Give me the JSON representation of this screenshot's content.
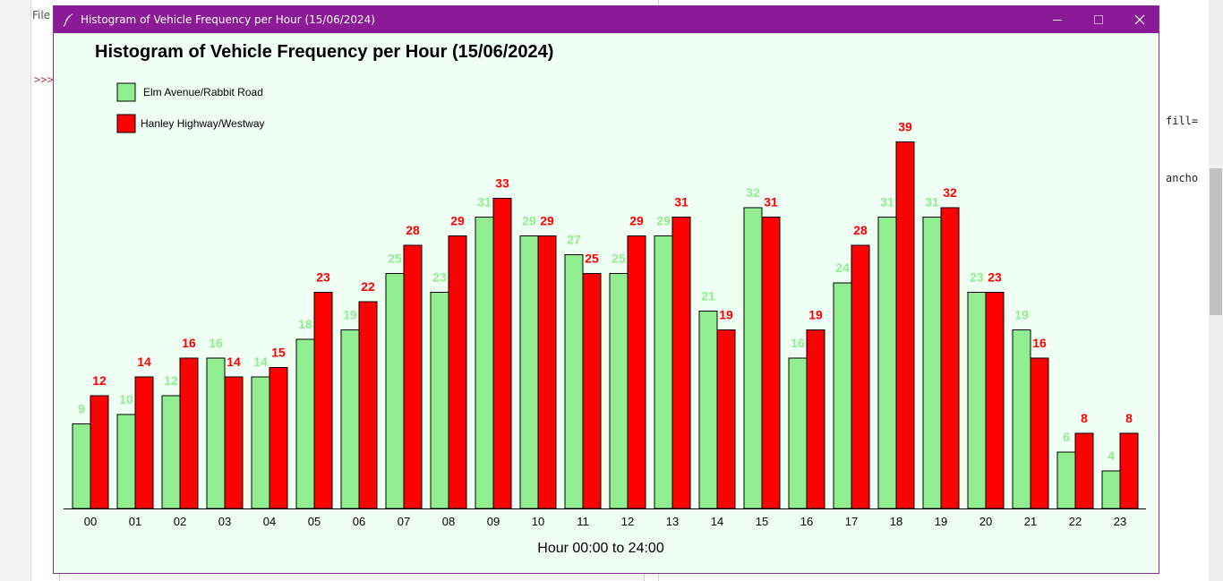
{
  "window": {
    "title": "Histogram of Vehicle Frequency per Hour (15/06/2024)",
    "titlebar_color": "#8b1a96",
    "background": "#f0fff4",
    "controls": [
      "minimize-icon",
      "maximize-icon",
      "close-icon"
    ]
  },
  "background_app": {
    "menu_text": "File",
    "prompt_text": ">>>",
    "code_fragments": [
      "fill=",
      "ancho"
    ]
  },
  "chart_data": {
    "type": "bar",
    "title": "Histogram of Vehicle Frequency per Hour (15/06/2024)",
    "xlabel": "Hour 00:00 to 24:00",
    "ylabel": "",
    "categories": [
      "00",
      "01",
      "02",
      "03",
      "04",
      "05",
      "06",
      "07",
      "08",
      "09",
      "10",
      "11",
      "12",
      "13",
      "14",
      "15",
      "16",
      "17",
      "18",
      "19",
      "20",
      "21",
      "22",
      "23"
    ],
    "series": [
      {
        "name": "Elm Avenue/Rabbit Road",
        "color": "#90ee90",
        "values": [
          9,
          10,
          12,
          16,
          14,
          18,
          19,
          25,
          23,
          31,
          29,
          27,
          25,
          29,
          21,
          32,
          16,
          24,
          31,
          31,
          23,
          19,
          6,
          4
        ]
      },
      {
        "name": "Hanley Highway/Westway",
        "color": "#ff0000",
        "values": [
          12,
          14,
          16,
          14,
          15,
          23,
          22,
          28,
          29,
          33,
          29,
          25,
          29,
          31,
          19,
          31,
          19,
          28,
          39,
          32,
          23,
          16,
          8,
          8
        ]
      }
    ],
    "legend_position": "top-left",
    "grid": false,
    "data_labels": true
  }
}
